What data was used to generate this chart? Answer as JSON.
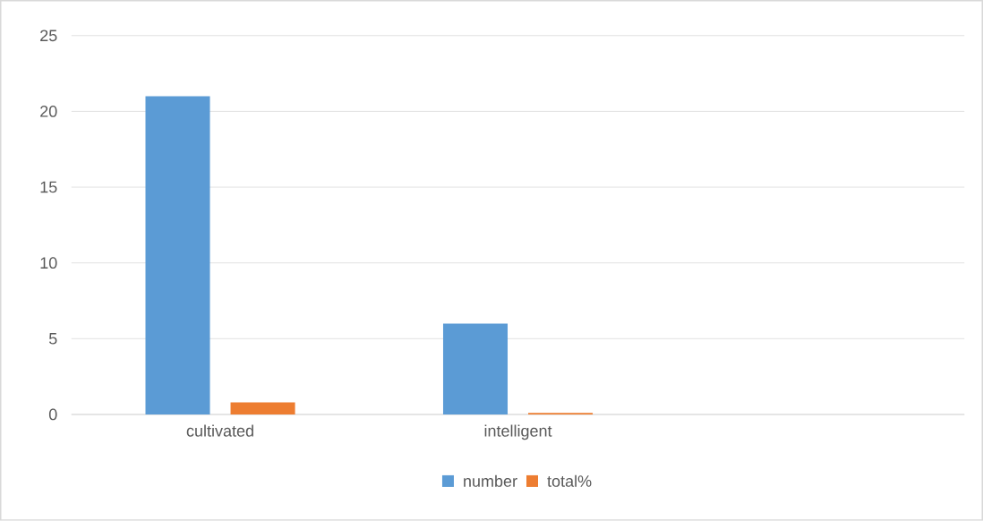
{
  "chart_data": {
    "type": "bar",
    "categories": [
      "cultivated",
      "intelligent",
      null
    ],
    "series": [
      {
        "name": "number",
        "color": "#5b9bd5",
        "values": [
          21,
          6,
          null
        ]
      },
      {
        "name": "total%",
        "color": "#ed7d31",
        "values": [
          0.8,
          0.1,
          null
        ]
      }
    ],
    "ylim": [
      0,
      25
    ],
    "yticks": [
      0,
      5,
      10,
      15,
      20,
      25
    ],
    "grid": "y",
    "legend": "bottom"
  }
}
